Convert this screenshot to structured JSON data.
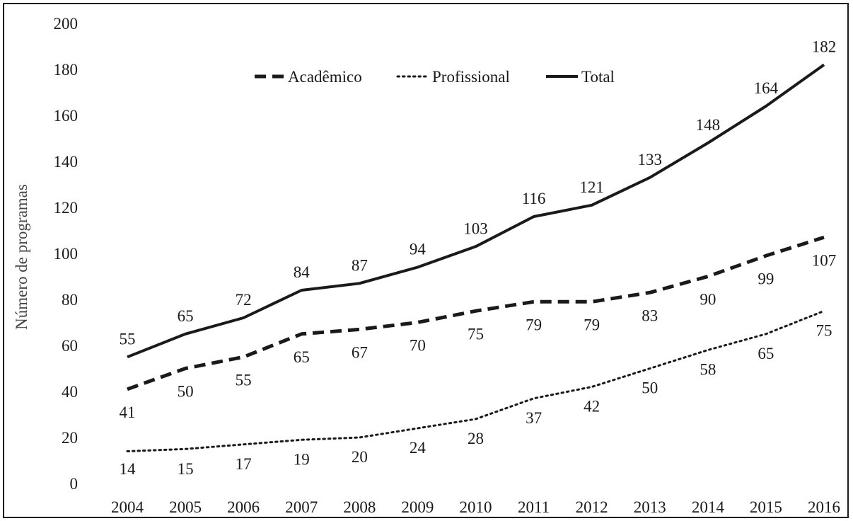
{
  "chart_data": {
    "type": "line",
    "title": "",
    "xlabel": "",
    "ylabel": "Número de programas",
    "ylim": [
      0,
      200
    ],
    "yticks": [
      0,
      20,
      40,
      60,
      80,
      100,
      120,
      140,
      160,
      180,
      200
    ],
    "grid": false,
    "legend_position": "top-center",
    "categories": [
      "2004",
      "2005",
      "2006",
      "2007",
      "2008",
      "2009",
      "2010",
      "2011",
      "2012",
      "2013",
      "2014",
      "2015",
      "2016"
    ],
    "series": [
      {
        "name": "Acadêmico",
        "style": "dashed",
        "color": "#1a1a1a",
        "values": [
          41,
          50,
          55,
          65,
          67,
          70,
          75,
          79,
          79,
          83,
          90,
          99,
          107
        ]
      },
      {
        "name": "Profissional",
        "style": "dotted",
        "color": "#1a1a1a",
        "values": [
          14,
          15,
          17,
          19,
          20,
          24,
          28,
          37,
          42,
          50,
          58,
          65,
          75
        ]
      },
      {
        "name": "Total",
        "style": "solid",
        "color": "#1a1a1a",
        "values": [
          55,
          65,
          72,
          84,
          87,
          94,
          103,
          116,
          121,
          133,
          148,
          164,
          182
        ]
      }
    ]
  }
}
